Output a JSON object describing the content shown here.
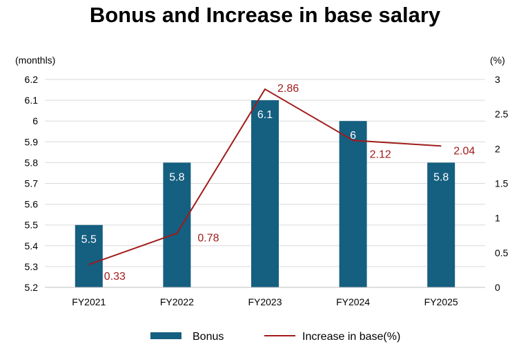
{
  "chart_data": {
    "type": "bar",
    "title": "Bonus and Increase in base salary",
    "categories": [
      "FY2021",
      "FY2022",
      "FY2023",
      "FY2024",
      "FY2025"
    ],
    "series": [
      {
        "name": "Bonus",
        "type": "bar",
        "axis": "left",
        "values": [
          5.5,
          5.8,
          6.1,
          6.0,
          5.8
        ],
        "labels": [
          "5.5",
          "5.8",
          "6.1",
          "6",
          "5.8"
        ],
        "color": "#155f80"
      },
      {
        "name": "Increase in base(%)",
        "type": "line",
        "axis": "right",
        "values": [
          0.33,
          0.78,
          2.86,
          2.12,
          2.04
        ],
        "labels": [
          "0.33",
          "0.78",
          "2.86",
          "2.12",
          "2.04"
        ],
        "color": "#a11b1b"
      }
    ],
    "y_left": {
      "unit": "(monthls)",
      "min": 5.2,
      "max": 6.2,
      "ticks": [
        "5.2",
        "5.3",
        "5.4",
        "5.5",
        "5.6",
        "5.7",
        "5.8",
        "5.9",
        "6",
        "6.1",
        "6.2"
      ]
    },
    "y_right": {
      "unit": "(%)",
      "min": 0,
      "max": 3,
      "ticks": [
        "0",
        "0.5",
        "1",
        "1.5",
        "2",
        "2.5",
        "3"
      ]
    },
    "grid": true,
    "legend": "bottom",
    "gridColor": "#d9d9d9"
  }
}
